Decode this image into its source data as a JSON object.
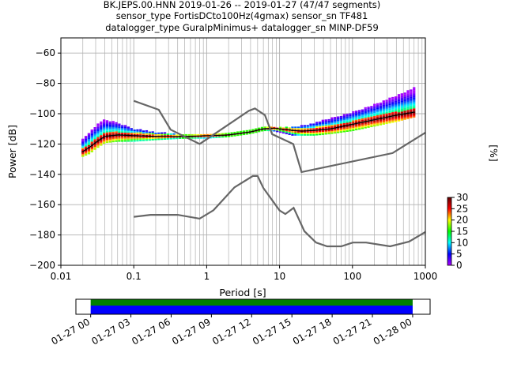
{
  "title_lines": [
    "BK.JEPS.00.HNN   2019-01-26 -- 2019-01-27  (47/47 segments)",
    "sensor_type FortisDCto100Hz(4gmax) sensor_sn TF481",
    "datalogger_type GuralpMinimus+ datalogger_sn MINP-DF59"
  ],
  "colors": {
    "model_lines": "#666666",
    "median": "#000000",
    "coverage_green": "#008000",
    "coverage_blue": "#0000ff"
  },
  "chart_data": [
    {
      "type": "heatmap",
      "subtype": "probabilistic-power-spectral-density",
      "xlabel": "Period [s]",
      "ylabel": "Power [dB]",
      "x_scale": "log",
      "xlim": [
        0.01,
        1000
      ],
      "ylim": [
        -200,
        -50
      ],
      "x_ticks": [
        0.01,
        0.1,
        1,
        10,
        100,
        1000
      ],
      "x_tick_labels": [
        "0.01",
        "0.1",
        "1",
        "10",
        "100",
        "1000"
      ],
      "y_ticks": [
        -200,
        -180,
        -160,
        -140,
        -120,
        -100,
        -80,
        -60
      ],
      "y_tick_labels": [
        "−200",
        "−180",
        "−160",
        "−140",
        "−120",
        "−100",
        "−80",
        "−60"
      ],
      "grid": true,
      "colorbar": {
        "label": "[%]",
        "range": [
          0,
          30
        ],
        "ticks": [
          0,
          5,
          10,
          15,
          20,
          25,
          30
        ],
        "tick_labels": [
          "0",
          "5",
          "10",
          "15",
          "20",
          "25",
          "30"
        ],
        "colormap": [
          "#b000ff",
          "#0000ff",
          "#00ffff",
          "#00ff00",
          "#ffff00",
          "#ff0000",
          "#5a0000"
        ]
      },
      "new_high_noise_model": {
        "period": [
          0.1,
          0.22,
          0.32,
          0.8,
          3.8,
          4.6,
          6.3,
          7.9,
          15.4,
          20,
          354.8,
          1000
        ],
        "power": [
          -91.5,
          -97.4,
          -110.5,
          -120,
          -98,
          -96.5,
          -101,
          -113.5,
          -120,
          -138.5,
          -126,
          -112.5
        ]
      },
      "new_low_noise_model": {
        "period": [
          0.1,
          0.17,
          0.4,
          0.8,
          1.24,
          2.4,
          4.3,
          5.0,
          6.0,
          10.0,
          12.0,
          15.6,
          21.9,
          31.6,
          45.0,
          70.0,
          101.0,
          154.0,
          328.0,
          600.0,
          1000.0
        ],
        "power": [
          -168,
          -166.7,
          -166.7,
          -169.2,
          -163.7,
          -148.6,
          -141.1,
          -141.1,
          -149,
          -163.8,
          -166.2,
          -162.1,
          -177.5,
          -185,
          -187.5,
          -187.5,
          -185,
          -185,
          -187.5,
          -184.4,
          -178
        ]
      },
      "median": {
        "period": [
          0.02,
          0.025,
          0.03,
          0.04,
          0.06,
          0.1,
          0.2,
          0.5,
          1,
          2,
          4,
          6,
          8,
          10,
          15,
          20,
          30,
          50,
          100,
          200,
          400,
          700
        ],
        "power": [
          -125,
          -122,
          -119,
          -115,
          -114,
          -114.5,
          -115,
          -115,
          -114.5,
          -114,
          -112,
          -110,
          -109.5,
          -110,
          -111,
          -111.5,
          -111,
          -110,
          -107,
          -104,
          -101,
          -99
        ]
      },
      "spread": {
        "period": [
          0.02,
          0.025,
          0.03,
          0.04,
          0.06,
          0.1,
          0.2,
          0.5,
          1,
          2,
          4,
          6,
          8,
          10,
          15,
          20,
          30,
          50,
          100,
          200,
          400,
          700
        ],
        "upper": [
          -117,
          -112,
          -108,
          -104,
          -106,
          -110,
          -112,
          -114,
          -114,
          -113,
          -111,
          -109,
          -109,
          -109,
          -109,
          -108,
          -106,
          -103,
          -99,
          -94,
          -88,
          -83
        ],
        "lower": [
          -128,
          -126,
          -123,
          -119,
          -118,
          -118,
          -117,
          -116,
          -116,
          -115,
          -113,
          -111,
          -111,
          -112,
          -114,
          -114,
          -114,
          -113,
          -111,
          -108,
          -105,
          -102
        ]
      }
    },
    {
      "type": "bar",
      "subtype": "data-coverage-timeline",
      "x_ticks": [
        "01-27 00",
        "01-27 03",
        "01-27 06",
        "01-27 09",
        "01-27 12",
        "01-27 15",
        "01-27 18",
        "01-27 21",
        "01-28 00"
      ],
      "x_range_hours": [
        -1.1,
        25.3
      ],
      "coverage_hours": [
        0,
        24
      ],
      "rows": [
        "green",
        "blue"
      ]
    }
  ]
}
